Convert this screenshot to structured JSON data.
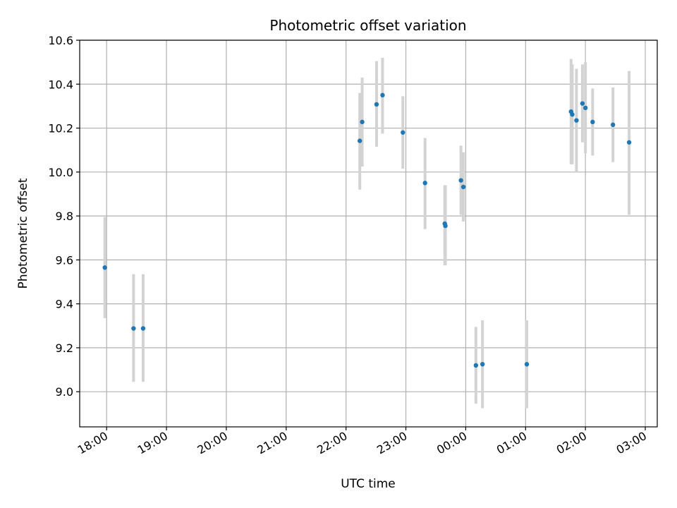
{
  "chart_data": {
    "type": "scatter",
    "title": "Photometric offset variation",
    "xlabel": "UTC time",
    "ylabel": "Photometric offset",
    "x_unit": "UTC hours (times after midnight shown as 24+)",
    "xlim": [
      17.55,
      27.2
    ],
    "ylim": [
      8.84,
      10.6
    ],
    "x_ticks": [
      {
        "value": 18,
        "label": "18:00"
      },
      {
        "value": 19,
        "label": "19:00"
      },
      {
        "value": 20,
        "label": "20:00"
      },
      {
        "value": 21,
        "label": "21:00"
      },
      {
        "value": 22,
        "label": "22:00"
      },
      {
        "value": 23,
        "label": "23:00"
      },
      {
        "value": 24,
        "label": "00:00"
      },
      {
        "value": 25,
        "label": "01:00"
      },
      {
        "value": 26,
        "label": "02:00"
      },
      {
        "value": 27,
        "label": "03:00"
      }
    ],
    "y_ticks": [
      "9.0",
      "9.2",
      "9.4",
      "9.6",
      "9.8",
      "10.0",
      "10.2",
      "10.4",
      "10.6"
    ],
    "grid": true,
    "marker_color": "#1f77b4",
    "errorbar_color": "#d3d3d3",
    "points": [
      {
        "x": 17.97,
        "y": 9.565,
        "lo": 9.335,
        "hi": 9.795
      },
      {
        "x": 18.45,
        "y": 9.288,
        "lo": 9.045,
        "hi": 9.535
      },
      {
        "x": 18.61,
        "y": 9.288,
        "lo": 9.045,
        "hi": 9.535
      },
      {
        "x": 22.23,
        "y": 10.142,
        "lo": 9.92,
        "hi": 10.36
      },
      {
        "x": 22.27,
        "y": 10.228,
        "lo": 10.025,
        "hi": 10.43
      },
      {
        "x": 22.51,
        "y": 10.308,
        "lo": 10.115,
        "hi": 10.505
      },
      {
        "x": 22.61,
        "y": 10.35,
        "lo": 10.175,
        "hi": 10.52
      },
      {
        "x": 22.95,
        "y": 10.18,
        "lo": 10.015,
        "hi": 10.345
      },
      {
        "x": 23.32,
        "y": 9.95,
        "lo": 9.74,
        "hi": 10.155
      },
      {
        "x": 23.65,
        "y": 9.765,
        "lo": 9.575,
        "hi": 9.94
      },
      {
        "x": 23.66,
        "y": 9.755,
        "lo": 9.575,
        "hi": 9.94
      },
      {
        "x": 23.92,
        "y": 9.962,
        "lo": 9.805,
        "hi": 10.12
      },
      {
        "x": 23.96,
        "y": 9.932,
        "lo": 9.775,
        "hi": 10.09
      },
      {
        "x": 24.17,
        "y": 9.12,
        "lo": 8.945,
        "hi": 9.295
      },
      {
        "x": 24.28,
        "y": 9.125,
        "lo": 8.925,
        "hi": 9.325
      },
      {
        "x": 25.02,
        "y": 9.125,
        "lo": 8.925,
        "hi": 9.325
      },
      {
        "x": 25.76,
        "y": 10.275,
        "lo": 10.035,
        "hi": 10.515
      },
      {
        "x": 25.78,
        "y": 10.262,
        "lo": 10.035,
        "hi": 10.49
      },
      {
        "x": 25.85,
        "y": 10.235,
        "lo": 10.0,
        "hi": 10.47
      },
      {
        "x": 25.95,
        "y": 10.312,
        "lo": 10.135,
        "hi": 10.49
      },
      {
        "x": 26.0,
        "y": 10.292,
        "lo": 10.085,
        "hi": 10.5
      },
      {
        "x": 26.12,
        "y": 10.228,
        "lo": 10.075,
        "hi": 10.38
      },
      {
        "x": 26.46,
        "y": 10.215,
        "lo": 10.045,
        "hi": 10.385
      },
      {
        "x": 26.73,
        "y": 10.135,
        "lo": 9.805,
        "hi": 10.46
      }
    ]
  }
}
